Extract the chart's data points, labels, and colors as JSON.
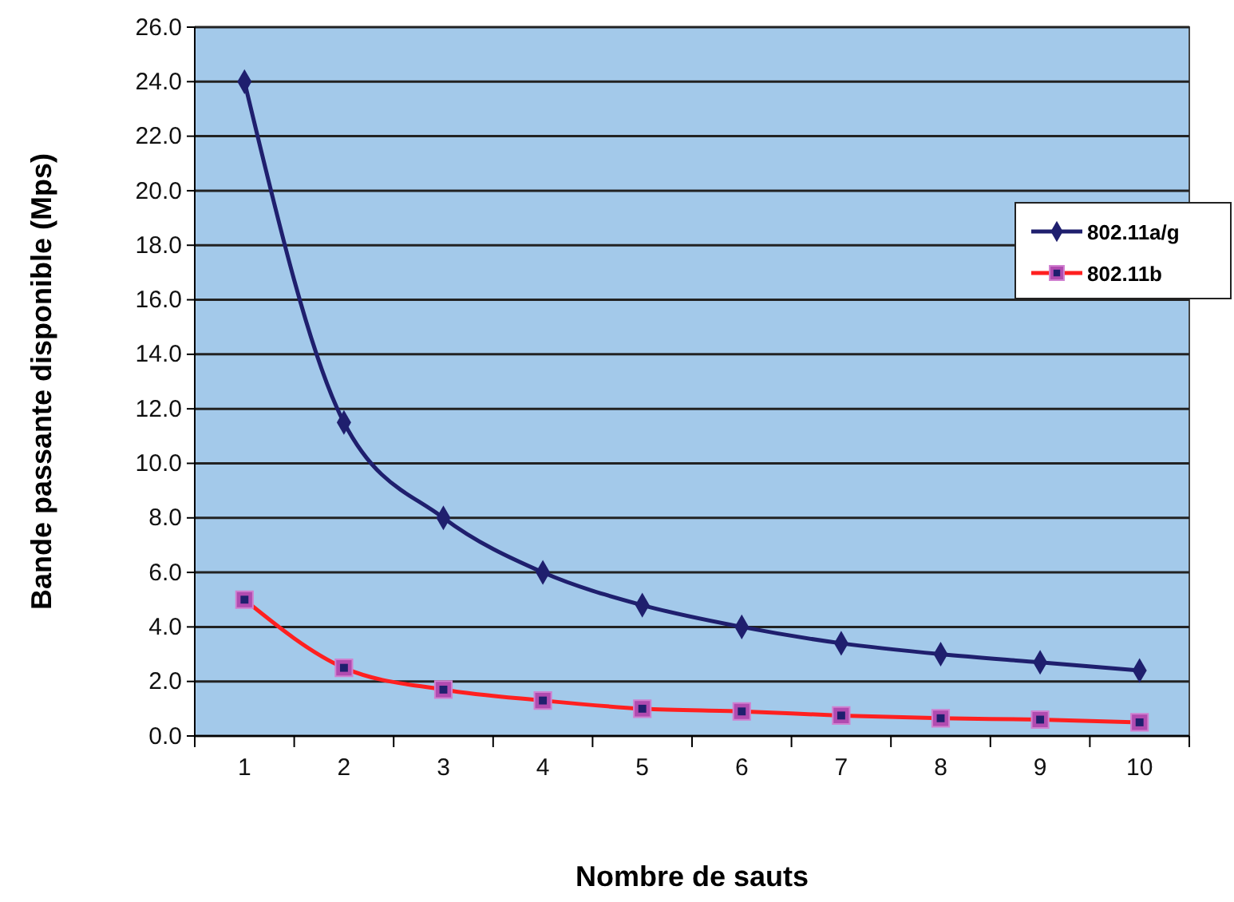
{
  "chart_data": {
    "type": "line",
    "xlabel": "Nombre de sauts",
    "ylabel": "Bande passante disponible (Mps)",
    "categories": [
      "1",
      "2",
      "3",
      "4",
      "5",
      "6",
      "7",
      "8",
      "9",
      "10"
    ],
    "series": [
      {
        "name": "802.11a/g",
        "color": "#1f1f6e",
        "marker": "diamond",
        "values": [
          24,
          11.5,
          8,
          6,
          4.8,
          4,
          3.4,
          3,
          2.7,
          2.4
        ]
      },
      {
        "name": "802.11b",
        "color": "#ff2020",
        "marker": "square",
        "values": [
          5,
          2.5,
          1.7,
          1.3,
          1.0,
          0.9,
          0.75,
          0.65,
          0.6,
          0.5
        ]
      }
    ],
    "ylim": [
      0,
      26
    ],
    "yticks": [
      {
        "value": 0,
        "label": "0.0"
      },
      {
        "value": 2,
        "label": "2.0"
      },
      {
        "value": 4,
        "label": "4.0"
      },
      {
        "value": 6,
        "label": "6.0"
      },
      {
        "value": 8,
        "label": "8.0"
      },
      {
        "value": 10,
        "label": "10.0"
      },
      {
        "value": 12,
        "label": "12.0"
      },
      {
        "value": 14,
        "label": "14.0"
      },
      {
        "value": 16,
        "label": "16.0"
      },
      {
        "value": 18,
        "label": "18.0"
      },
      {
        "value": 20,
        "label": "20.0"
      },
      {
        "value": 22,
        "label": "22.0"
      },
      {
        "value": 24,
        "label": "24.0"
      },
      {
        "value": 26,
        "label": "26.0"
      }
    ],
    "grid": "y",
    "legend": "right"
  }
}
